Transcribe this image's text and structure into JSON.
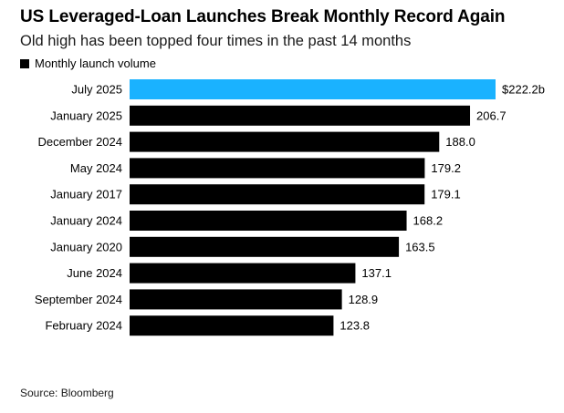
{
  "chart_data": {
    "type": "bar",
    "orientation": "horizontal",
    "title": "US Leveraged-Loan Launches Break Monthly Record Again",
    "subtitle": "Old high has been topped four times in the past 14 months",
    "legend": [
      "Monthly launch volume"
    ],
    "legend_position": "top-left",
    "categories": [
      "July 2025",
      "January 2025",
      "December 2024",
      "May 2024",
      "January 2017",
      "January 2024",
      "January 2020",
      "June 2024",
      "September 2024",
      "February 2024"
    ],
    "values": [
      222.2,
      206.7,
      188.0,
      179.2,
      179.1,
      168.2,
      163.5,
      137.1,
      128.9,
      123.8
    ],
    "value_labels": [
      "$222.2b",
      "206.7",
      "188.0",
      "179.2",
      "179.1",
      "168.2",
      "163.5",
      "137.1",
      "128.9",
      "123.8"
    ],
    "highlight_index": 0,
    "grid": false,
    "xlim": [
      0,
      222.2
    ],
    "colors": {
      "bar": "#000000",
      "highlight": "#1ab2ff"
    },
    "source": "Source: Bloomberg"
  }
}
